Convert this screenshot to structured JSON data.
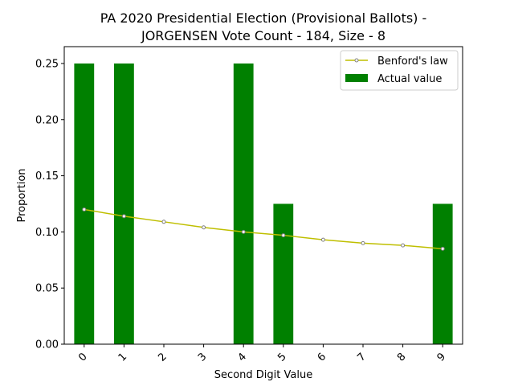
{
  "chart_data": {
    "type": "bar",
    "title": [
      "PA 2020 Presidential Election (Provisional Ballots) -",
      "JORGENSEN Vote Count - 184, Size - 8"
    ],
    "xlabel": "Second Digit Value",
    "ylabel": "Proportion",
    "categories": [
      "0",
      "1",
      "2",
      "3",
      "4",
      "5",
      "6",
      "7",
      "8",
      "9"
    ],
    "ylim": [
      0,
      0.265
    ],
    "yticks": [
      "0.00",
      "0.05",
      "0.10",
      "0.15",
      "0.20",
      "0.25"
    ],
    "ytick_values": [
      0,
      0.05,
      0.1,
      0.15,
      0.2,
      0.25
    ],
    "grid": false,
    "legend_position": "top-right",
    "series": [
      {
        "name": "Actual value",
        "kind": "bar",
        "color": "#008000",
        "values": [
          0.25,
          0.25,
          0,
          0,
          0.25,
          0.125,
          0,
          0,
          0,
          0.125
        ]
      },
      {
        "name": "Benford's law",
        "kind": "line",
        "color": "#bfbf00",
        "values": [
          0.12,
          0.114,
          0.109,
          0.104,
          0.1,
          0.097,
          0.093,
          0.09,
          0.088,
          0.085
        ]
      }
    ]
  }
}
